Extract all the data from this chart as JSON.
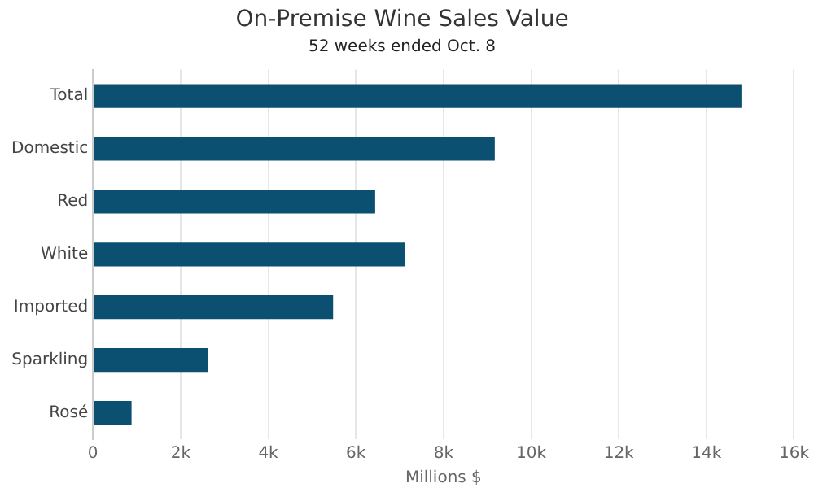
{
  "chart_data": {
    "type": "bar",
    "orientation": "horizontal",
    "title": "On-Premise Wine Sales Value",
    "subtitle": "52 weeks ended Oct. 8",
    "xlabel": "Millions $",
    "categories": [
      "Total",
      "Domestic",
      "Red",
      "White",
      "Imported",
      "Sparkling",
      "Rosé"
    ],
    "values": [
      14800,
      9170,
      6440,
      7120,
      5480,
      2620,
      880
    ],
    "color": "#0b4f71",
    "xlim": [
      0,
      16000
    ],
    "xticks": [
      {
        "value": 0,
        "label": "0"
      },
      {
        "value": 2000,
        "label": "2k"
      },
      {
        "value": 4000,
        "label": "4k"
      },
      {
        "value": 6000,
        "label": "6k"
      },
      {
        "value": 8000,
        "label": "8k"
      },
      {
        "value": 10000,
        "label": "10k"
      },
      {
        "value": 12000,
        "label": "12k"
      },
      {
        "value": 14000,
        "label": "14k"
      },
      {
        "value": 16000,
        "label": "16k"
      }
    ],
    "grid": "x",
    "legend": false
  }
}
